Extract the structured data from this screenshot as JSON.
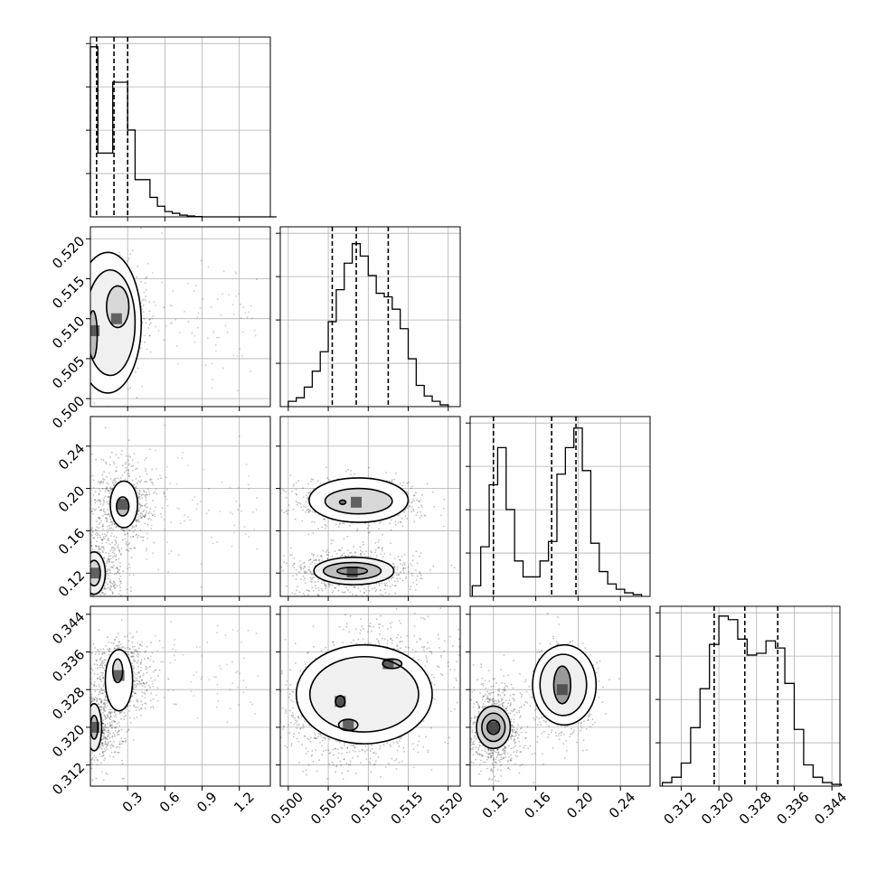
{
  "chart_data": {
    "type": "corner",
    "grid": true,
    "x_ticks": [
      [
        "0.3",
        "0.6",
        "0.9",
        "1.2"
      ],
      [
        "0.500",
        "0.505",
        "0.510",
        "0.515",
        "0.520"
      ],
      [
        "0.12",
        "0.16",
        "0.20",
        "0.24"
      ],
      [
        "0.312",
        "0.320",
        "0.328",
        "0.336",
        "0.344"
      ]
    ],
    "y_ticks": [
      [],
      [
        "0.500",
        "0.505",
        "0.510",
        "0.515",
        "0.520"
      ],
      [
        "0.12",
        "0.16",
        "0.20",
        "0.24"
      ],
      [
        "0.312",
        "0.320",
        "0.328",
        "0.336",
        "0.344"
      ]
    ],
    "ranges": [
      [
        0.0,
        1.45
      ],
      [
        0.499,
        0.5215
      ],
      [
        0.098,
        0.268
      ],
      [
        0.3075,
        0.3457
      ]
    ],
    "quantiles": [
      [
        0.05,
        0.19,
        0.3
      ],
      [
        0.5055,
        0.5085,
        0.5125
      ],
      [
        0.12,
        0.175,
        0.198
      ],
      [
        0.319,
        0.3255,
        0.3325
      ]
    ],
    "histograms": [
      {
        "x": [
          0.0,
          0.06,
          0.12,
          0.18,
          0.24,
          0.3,
          0.36,
          0.42,
          0.48,
          0.54,
          0.6,
          0.66,
          0.72,
          0.78,
          0.84,
          0.9,
          1.0,
          1.1,
          1.2,
          1.3,
          1.4
        ],
        "y": [
          0.96,
          0.36,
          0.36,
          0.76,
          0.76,
          0.49,
          0.21,
          0.21,
          0.11,
          0.06,
          0.03,
          0.02,
          0.01,
          0.005,
          0.002,
          0.0,
          0.0,
          0.0,
          0.0,
          0.0,
          0.0
        ]
      },
      {
        "x": [
          0.5,
          0.501,
          0.502,
          0.503,
          0.504,
          0.505,
          0.506,
          0.507,
          0.508,
          0.509,
          0.51,
          0.511,
          0.512,
          0.513,
          0.514,
          0.515,
          0.516,
          0.517,
          0.518,
          0.519
        ],
        "y": [
          0.03,
          0.05,
          0.11,
          0.2,
          0.31,
          0.48,
          0.66,
          0.81,
          0.92,
          0.85,
          0.74,
          0.64,
          0.62,
          0.55,
          0.44,
          0.27,
          0.12,
          0.06,
          0.03,
          0.01
        ]
      },
      {
        "x": [
          0.1,
          0.108,
          0.116,
          0.124,
          0.132,
          0.14,
          0.148,
          0.156,
          0.164,
          0.172,
          0.18,
          0.188,
          0.196,
          0.204,
          0.212,
          0.22,
          0.228,
          0.236,
          0.244,
          0.252
        ],
        "y": [
          0.06,
          0.28,
          0.63,
          0.84,
          0.49,
          0.2,
          0.11,
          0.11,
          0.2,
          0.31,
          0.69,
          0.84,
          0.95,
          0.71,
          0.3,
          0.14,
          0.07,
          0.04,
          0.02,
          0.01
        ]
      },
      {
        "x": [
          0.308,
          0.31,
          0.312,
          0.314,
          0.316,
          0.318,
          0.32,
          0.322,
          0.324,
          0.326,
          0.328,
          0.33,
          0.332,
          0.334,
          0.336,
          0.338,
          0.34,
          0.342,
          0.344
        ],
        "y": [
          0.02,
          0.05,
          0.13,
          0.33,
          0.55,
          0.8,
          0.96,
          0.94,
          0.83,
          0.74,
          0.75,
          0.82,
          0.78,
          0.58,
          0.32,
          0.12,
          0.05,
          0.02,
          0.01
        ]
      }
    ],
    "joint": [
      {
        "row": 1,
        "col": 0,
        "spread": [
          0.12,
          0.0033
        ],
        "modes": [
          {
            "x": 0.03,
            "y": 0.5085,
            "w": 0.9
          },
          {
            "x": 0.21,
            "y": 0.51,
            "w": 1.0
          }
        ],
        "contours": [
          {
            "x": 0.22,
            "y": 0.5115,
            "rx": 0.09,
            "ry": 0.0026
          },
          {
            "x": 0.16,
            "y": 0.5095,
            "rx": 0.2,
            "ry": 0.0066
          },
          {
            "x": 0.14,
            "y": 0.5095,
            "rx": 0.27,
            "ry": 0.0088
          },
          {
            "x": 0.02,
            "y": 0.508,
            "rx": 0.035,
            "ry": 0.003
          }
        ]
      },
      {
        "row": 2,
        "col": 0,
        "spread": [
          0.12,
          0.02
        ],
        "modes": [
          {
            "x": 0.03,
            "y": 0.12,
            "w": 1.0
          },
          {
            "x": 0.26,
            "y": 0.185,
            "w": 1.0
          }
        ],
        "contours": [
          {
            "x": 0.26,
            "y": 0.183,
            "rx": 0.05,
            "ry": 0.009
          },
          {
            "x": 0.27,
            "y": 0.185,
            "rx": 0.11,
            "ry": 0.022
          },
          {
            "x": 0.03,
            "y": 0.12,
            "rx": 0.05,
            "ry": 0.012
          },
          {
            "x": 0.03,
            "y": 0.12,
            "rx": 0.09,
            "ry": 0.02
          }
        ]
      },
      {
        "row": 2,
        "col": 1,
        "spread": [
          0.0042,
          0.011
        ],
        "modes": [
          {
            "x": 0.5085,
            "y": 0.187,
            "w": 1.0
          },
          {
            "x": 0.508,
            "y": 0.121,
            "w": 0.9
          }
        ],
        "contours": [
          {
            "x": 0.5068,
            "y": 0.187,
            "rx": 0.0004,
            "ry": 0.002
          },
          {
            "x": 0.5088,
            "y": 0.188,
            "rx": 0.0042,
            "ry": 0.012
          },
          {
            "x": 0.5088,
            "y": 0.189,
            "rx": 0.0062,
            "ry": 0.021
          },
          {
            "x": 0.508,
            "y": 0.122,
            "rx": 0.0019,
            "ry": 0.0035
          },
          {
            "x": 0.508,
            "y": 0.122,
            "rx": 0.0036,
            "ry": 0.008
          },
          {
            "x": 0.5082,
            "y": 0.122,
            "rx": 0.005,
            "ry": 0.013
          }
        ]
      },
      {
        "row": 3,
        "col": 0,
        "spread": [
          0.12,
          0.004
        ],
        "modes": [
          {
            "x": 0.03,
            "y": 0.32,
            "w": 1.0
          },
          {
            "x": 0.23,
            "y": 0.331,
            "w": 1.0
          }
        ],
        "contours": [
          {
            "x": 0.22,
            "y": 0.332,
            "rx": 0.04,
            "ry": 0.0025
          },
          {
            "x": 0.23,
            "y": 0.33,
            "rx": 0.11,
            "ry": 0.0065
          },
          {
            "x": 0.03,
            "y": 0.32,
            "rx": 0.03,
            "ry": 0.0025
          },
          {
            "x": 0.03,
            "y": 0.32,
            "rx": 0.06,
            "ry": 0.005
          }
        ]
      },
      {
        "row": 3,
        "col": 1,
        "spread": [
          0.0045,
          0.005
        ],
        "modes": [
          {
            "x": 0.5065,
            "y": 0.3255,
            "w": 1.0
          },
          {
            "x": 0.5075,
            "y": 0.3205,
            "w": 0.8
          },
          {
            "x": 0.5125,
            "y": 0.3335,
            "w": 0.7
          }
        ],
        "contours": [
          {
            "x": 0.5065,
            "y": 0.3255,
            "rx": 0.0006,
            "ry": 0.0012
          },
          {
            "x": 0.5075,
            "y": 0.3205,
            "rx": 0.0012,
            "ry": 0.0012
          },
          {
            "x": 0.513,
            "y": 0.3335,
            "rx": 0.0012,
            "ry": 0.001
          },
          {
            "x": 0.5095,
            "y": 0.327,
            "rx": 0.0068,
            "ry": 0.008
          },
          {
            "x": 0.5095,
            "y": 0.327,
            "rx": 0.0085,
            "ry": 0.0105
          }
        ]
      },
      {
        "row": 3,
        "col": 2,
        "spread": [
          0.014,
          0.005
        ],
        "modes": [
          {
            "x": 0.12,
            "y": 0.32,
            "w": 1.0
          },
          {
            "x": 0.185,
            "y": 0.328,
            "w": 0.9
          }
        ],
        "contours": [
          {
            "x": 0.12,
            "y": 0.32,
            "rx": 0.006,
            "ry": 0.0015
          },
          {
            "x": 0.12,
            "y": 0.32,
            "rx": 0.011,
            "ry": 0.003
          },
          {
            "x": 0.12,
            "y": 0.32,
            "rx": 0.016,
            "ry": 0.0045
          },
          {
            "x": 0.185,
            "y": 0.329,
            "rx": 0.008,
            "ry": 0.004
          },
          {
            "x": 0.186,
            "y": 0.329,
            "rx": 0.022,
            "ry": 0.0065
          },
          {
            "x": 0.187,
            "y": 0.329,
            "rx": 0.03,
            "ry": 0.0085
          }
        ]
      }
    ]
  }
}
